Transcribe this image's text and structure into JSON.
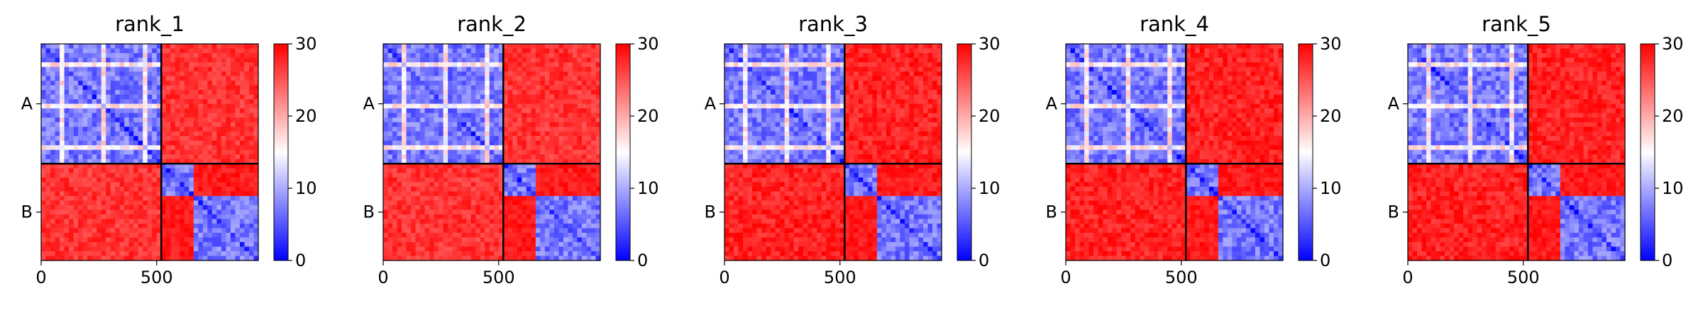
{
  "chart_data": [
    {
      "type": "heatmap",
      "title": "rank_1",
      "x_ticks": [
        "0",
        "500"
      ],
      "y_tick_labels": [
        "A",
        "B"
      ],
      "colorbar_ticks": [
        "0",
        "10",
        "20",
        "30"
      ],
      "colorbar_range": [
        0,
        30
      ],
      "colormap": "bwr",
      "chain_boundary": 520,
      "total_length": 940,
      "chains": [
        {
          "name": "A",
          "range": [
            0,
            520
          ]
        },
        {
          "name": "B",
          "range": [
            520,
            940
          ]
        }
      ],
      "domains": [
        [
          0,
          520
        ],
        [
          520,
          660
        ],
        [
          660,
          940
        ]
      ],
      "pae_within_domain": 4,
      "pae_between_chains": 29
    },
    {
      "type": "heatmap",
      "title": "rank_2",
      "x_ticks": [
        "0",
        "500"
      ],
      "y_tick_labels": [
        "A",
        "B"
      ],
      "colorbar_ticks": [
        "0",
        "10",
        "20",
        "30"
      ],
      "colorbar_range": [
        0,
        30
      ],
      "colormap": "bwr",
      "chain_boundary": 520,
      "total_length": 940,
      "chains": [
        {
          "name": "A",
          "range": [
            0,
            520
          ]
        },
        {
          "name": "B",
          "range": [
            520,
            940
          ]
        }
      ],
      "domains": [
        [
          0,
          520
        ],
        [
          520,
          660
        ],
        [
          660,
          940
        ]
      ],
      "pae_within_domain": 4,
      "pae_between_chains": 29
    },
    {
      "type": "heatmap",
      "title": "rank_3",
      "x_ticks": [
        "0",
        "500"
      ],
      "y_tick_labels": [
        "A",
        "B"
      ],
      "colorbar_ticks": [
        "0",
        "10",
        "20",
        "30"
      ],
      "colorbar_range": [
        0,
        30
      ],
      "colormap": "bwr",
      "chain_boundary": 520,
      "total_length": 940,
      "chains": [
        {
          "name": "A",
          "range": [
            0,
            520
          ]
        },
        {
          "name": "B",
          "range": [
            520,
            940
          ]
        }
      ],
      "domains": [
        [
          0,
          520
        ],
        [
          520,
          660
        ],
        [
          660,
          940
        ]
      ],
      "pae_within_domain": 4,
      "pae_between_chains": 30
    },
    {
      "type": "heatmap",
      "title": "rank_4",
      "x_ticks": [
        "0",
        "500"
      ],
      "y_tick_labels": [
        "A",
        "B"
      ],
      "colorbar_ticks": [
        "0",
        "10",
        "20",
        "30"
      ],
      "colorbar_range": [
        0,
        30
      ],
      "colormap": "bwr",
      "chain_boundary": 520,
      "total_length": 940,
      "chains": [
        {
          "name": "A",
          "range": [
            0,
            520
          ]
        },
        {
          "name": "B",
          "range": [
            520,
            940
          ]
        }
      ],
      "domains": [
        [
          0,
          520
        ],
        [
          520,
          660
        ],
        [
          660,
          940
        ]
      ],
      "pae_within_domain": 4,
      "pae_between_chains": 30
    },
    {
      "type": "heatmap",
      "title": "rank_5",
      "x_ticks": [
        "0",
        "500"
      ],
      "y_tick_labels": [
        "A",
        "B"
      ],
      "colorbar_ticks": [
        "0",
        "10",
        "20",
        "30"
      ],
      "colorbar_range": [
        0,
        30
      ],
      "colormap": "bwr",
      "chain_boundary": 520,
      "total_length": 940,
      "chains": [
        {
          "name": "A",
          "range": [
            0,
            520
          ]
        },
        {
          "name": "B",
          "range": [
            520,
            940
          ]
        }
      ],
      "domains": [
        [
          0,
          520
        ],
        [
          520,
          660
        ],
        [
          660,
          940
        ]
      ],
      "pae_within_domain": 4,
      "pae_between_chains": 30
    }
  ]
}
